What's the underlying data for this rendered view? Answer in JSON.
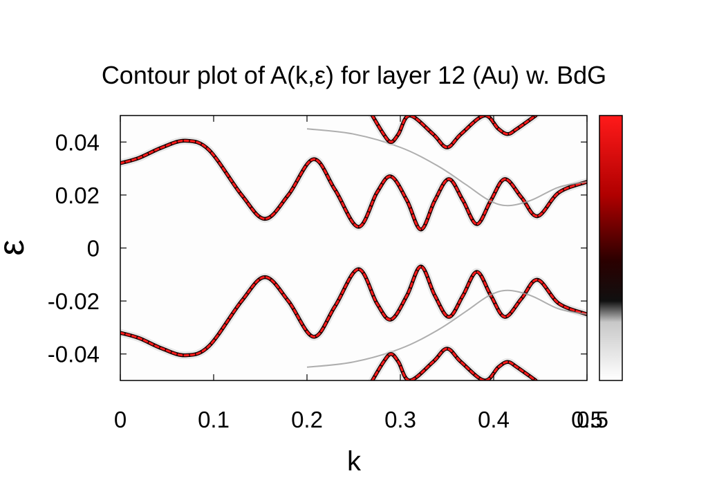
{
  "chart_data": {
    "type": "heatmap",
    "title": "Contour plot of A(k,ε)  for layer 12 (Au) w. BdG",
    "xlabel": "k",
    "ylabel": "ε",
    "xlim": [
      0,
      0.5
    ],
    "ylim": [
      -0.05,
      0.05
    ],
    "x_ticks": [
      0,
      0.1,
      0.2,
      0.3,
      0.4,
      0.5
    ],
    "x_tick_labels": [
      "0",
      "0.1",
      "0.2",
      "0.3",
      "0.4",
      "0.5"
    ],
    "y_ticks": [
      -0.04,
      -0.02,
      0,
      0.02,
      0.04
    ],
    "y_tick_labels": [
      "-0.04",
      "-0.02",
      "0",
      "0.02",
      "0.04"
    ],
    "colorbar": {
      "range": [
        0,
        0.5
      ],
      "max_label": "0.5",
      "colors": [
        "#ffffff",
        "#000000",
        "#ff0000"
      ]
    },
    "series": [
      {
        "k": [
          0.0,
          0.02,
          0.045,
          0.07,
          0.095,
          0.13,
          0.155,
          0.18,
          0.207,
          0.23,
          0.255,
          0.275,
          0.29,
          0.307,
          0.322,
          0.337,
          0.352,
          0.367,
          0.382,
          0.397,
          0.412,
          0.43,
          0.447,
          0.47,
          0.5
        ],
        "eps": [
          0.032,
          0.034,
          0.038,
          0.0405,
          0.037,
          0.02,
          0.011,
          0.02,
          0.0335,
          0.022,
          0.008,
          0.021,
          0.027,
          0.018,
          0.007,
          0.018,
          0.026,
          0.018,
          0.009,
          0.018,
          0.026,
          0.019,
          0.012,
          0.021,
          0.025
        ]
      },
      {
        "k": [
          0.0,
          0.02,
          0.045,
          0.07,
          0.095,
          0.13,
          0.155,
          0.18,
          0.207,
          0.23,
          0.255,
          0.275,
          0.29,
          0.307,
          0.322,
          0.337,
          0.352,
          0.367,
          0.382,
          0.397,
          0.412,
          0.43,
          0.447,
          0.47,
          0.5
        ],
        "eps": [
          -0.032,
          -0.034,
          -0.038,
          -0.0405,
          -0.037,
          -0.02,
          -0.011,
          -0.02,
          -0.0335,
          -0.022,
          -0.008,
          -0.021,
          -0.027,
          -0.018,
          -0.007,
          -0.018,
          -0.026,
          -0.018,
          -0.009,
          -0.018,
          -0.026,
          -0.019,
          -0.012,
          -0.021,
          -0.025
        ]
      },
      {
        "k": [
          0.2,
          0.25,
          0.3,
          0.34,
          0.37,
          0.395,
          0.415,
          0.44,
          0.47,
          0.5
        ],
        "eps": [
          0.045,
          0.043,
          0.038,
          0.031,
          0.024,
          0.018,
          0.016,
          0.018,
          0.023,
          0.025
        ]
      },
      {
        "k": [
          0.2,
          0.25,
          0.3,
          0.34,
          0.37,
          0.395,
          0.415,
          0.44,
          0.47,
          0.5
        ],
        "eps": [
          -0.045,
          -0.043,
          -0.038,
          -0.031,
          -0.024,
          -0.018,
          -0.016,
          -0.018,
          -0.023,
          -0.025
        ]
      },
      {
        "k": [
          0.27,
          0.282,
          0.29,
          0.298,
          0.31,
          0.335,
          0.35,
          0.365,
          0.39,
          0.405,
          0.415,
          0.425,
          0.445
        ],
        "eps": [
          0.05,
          0.043,
          0.04,
          0.043,
          0.05,
          0.043,
          0.038,
          0.043,
          0.05,
          0.045,
          0.043,
          0.045,
          0.05
        ]
      },
      {
        "k": [
          0.27,
          0.282,
          0.29,
          0.298,
          0.31,
          0.335,
          0.35,
          0.365,
          0.39,
          0.405,
          0.415,
          0.425,
          0.445
        ],
        "eps": [
          -0.05,
          -0.043,
          -0.04,
          -0.043,
          -0.05,
          -0.043,
          -0.038,
          -0.043,
          -0.05,
          -0.045,
          -0.043,
          -0.045,
          -0.05
        ]
      }
    ]
  }
}
